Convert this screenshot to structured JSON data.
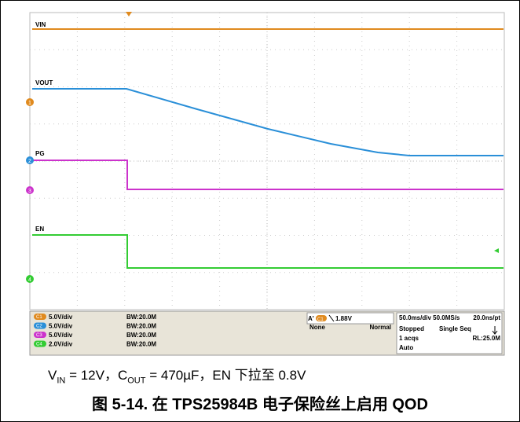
{
  "screen": {
    "traces": [
      {
        "label": "VIN"
      },
      {
        "label": "VOUT"
      },
      {
        "label": "PG"
      },
      {
        "label": "EN"
      }
    ],
    "markers": [
      "1",
      "2",
      "3",
      "4"
    ]
  },
  "status": {
    "channels": [
      {
        "id": "C1",
        "scale": "5.0V/div",
        "bw": "BW:20.0M"
      },
      {
        "id": "C2",
        "scale": "5.0V/div",
        "bw": "BW:20.0M"
      },
      {
        "id": "C3",
        "scale": "5.0V/div",
        "bw": "BW:20.0M"
      },
      {
        "id": "C4",
        "scale": "2.0V/div",
        "bw": "BW:20.0M"
      }
    ],
    "trigger": {
      "label": "A'",
      "source": "C1",
      "level": "1.88V",
      "coupling": "None",
      "mode": "Normal"
    },
    "acquisition": {
      "timebase": "50.0ms/div 50.0MS/s",
      "resolution": "20.0ns/pt",
      "state": "Stopped",
      "seq": "Single Seq",
      "acqs": "1 acqs",
      "rl": "RL:25.0M",
      "auto": "Auto"
    }
  },
  "caption": {
    "line1": [
      "V",
      "IN",
      " = 12V，C",
      "OUT",
      " = 470µF，EN 下拉至 0.8V"
    ],
    "title": "图 5-14. 在 TPS25984B 电子保险丝上启用 QOD"
  }
}
